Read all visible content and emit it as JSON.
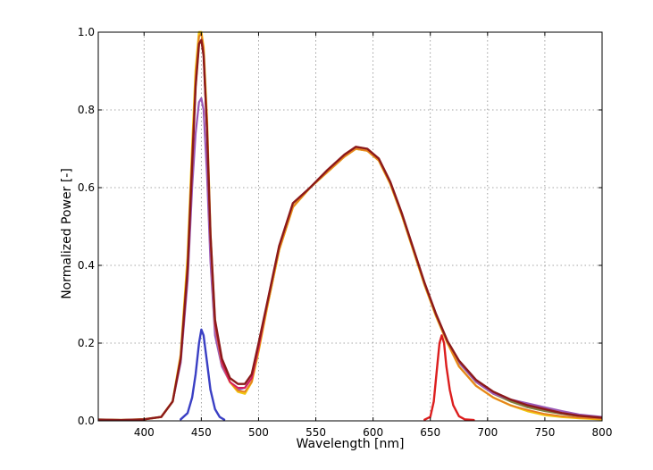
{
  "chart_data": {
    "type": "line",
    "xlabel": "Wavelength [nm]",
    "ylabel": "Normalized Power [-]",
    "xlim": [
      360,
      800
    ],
    "ylim": [
      0,
      1.0
    ],
    "grid": true,
    "x_ticks": [
      400,
      450,
      500,
      550,
      600,
      650,
      700,
      750,
      800
    ],
    "x_tick_labels": [
      "400",
      "450",
      "500",
      "550",
      "600",
      "650",
      "700",
      "750",
      "800"
    ],
    "y_ticks": [
      0.0,
      0.2,
      0.4,
      0.6,
      0.8,
      1.0
    ],
    "y_tick_labels": [
      "0.0",
      "0.2",
      "0.4",
      "0.6",
      "0.8",
      "1.0"
    ],
    "series": [
      {
        "color": "#808040",
        "width": 2.2,
        "x": [
          360,
          380,
          400,
          415,
          425,
          432,
          438,
          442,
          445,
          448,
          450,
          452,
          455,
          458,
          462,
          468,
          475,
          482,
          488,
          494,
          500,
          508,
          518,
          530,
          545,
          560,
          575,
          585,
          595,
          605,
          615,
          625,
          635,
          645,
          655,
          665,
          675,
          690,
          705,
          720,
          735,
          750,
          765,
          780,
          800
        ],
        "y": [
          0.004,
          0.002,
          0.004,
          0.01,
          0.05,
          0.16,
          0.4,
          0.68,
          0.88,
          0.99,
          1.0,
          0.95,
          0.74,
          0.46,
          0.24,
          0.15,
          0.1,
          0.08,
          0.085,
          0.11,
          0.19,
          0.3,
          0.44,
          0.55,
          0.6,
          0.64,
          0.68,
          0.7,
          0.695,
          0.67,
          0.61,
          0.53,
          0.44,
          0.35,
          0.27,
          0.2,
          0.15,
          0.1,
          0.07,
          0.05,
          0.035,
          0.025,
          0.018,
          0.012,
          0.008
        ]
      },
      {
        "color": "#9b59b6",
        "width": 2.2,
        "x": [
          360,
          380,
          400,
          415,
          425,
          432,
          438,
          442,
          445,
          448,
          450,
          452,
          455,
          458,
          462,
          468,
          475,
          482,
          488,
          494,
          500,
          508,
          518,
          530,
          545,
          560,
          575,
          585,
          595,
          605,
          615,
          625,
          635,
          645,
          655,
          665,
          675,
          690,
          705,
          720,
          735,
          750,
          765,
          780,
          800
        ],
        "y": [
          0.003,
          0.002,
          0.004,
          0.01,
          0.05,
          0.15,
          0.36,
          0.6,
          0.74,
          0.82,
          0.83,
          0.8,
          0.63,
          0.41,
          0.22,
          0.14,
          0.1,
          0.08,
          0.085,
          0.11,
          0.19,
          0.3,
          0.44,
          0.55,
          0.6,
          0.64,
          0.68,
          0.7,
          0.695,
          0.67,
          0.61,
          0.53,
          0.44,
          0.35,
          0.27,
          0.2,
          0.15,
          0.1,
          0.07,
          0.055,
          0.045,
          0.035,
          0.025,
          0.016,
          0.01
        ]
      },
      {
        "color": "#f1c40f",
        "width": 2.5,
        "x": [
          360,
          380,
          400,
          415,
          425,
          432,
          438,
          442,
          445,
          448,
          450,
          452,
          455,
          458,
          462,
          468,
          475,
          482,
          488,
          494,
          500,
          508,
          518,
          530,
          545,
          560,
          575,
          585,
          595,
          605,
          615,
          625,
          635,
          645,
          655,
          665,
          675,
          690,
          705,
          720,
          735,
          750,
          765,
          780,
          800
        ],
        "y": [
          0.003,
          0.002,
          0.004,
          0.01,
          0.05,
          0.17,
          0.42,
          0.7,
          0.9,
          1.0,
          1.0,
          0.96,
          0.77,
          0.48,
          0.25,
          0.15,
          0.1,
          0.075,
          0.07,
          0.1,
          0.18,
          0.3,
          0.44,
          0.55,
          0.6,
          0.64,
          0.68,
          0.7,
          0.695,
          0.67,
          0.61,
          0.53,
          0.44,
          0.35,
          0.27,
          0.2,
          0.14,
          0.09,
          0.06,
          0.04,
          0.025,
          0.015,
          0.01,
          0.007,
          0.004
        ]
      },
      {
        "color": "#e67e22",
        "width": 1.8,
        "x": [
          360,
          380,
          400,
          415,
          425,
          432,
          438,
          442,
          445,
          448,
          450,
          452,
          455,
          458,
          462,
          468,
          475,
          482,
          488,
          494,
          500,
          508,
          518,
          530,
          545,
          560,
          575,
          585,
          595,
          605,
          615,
          625,
          635,
          645,
          655,
          665,
          675,
          690,
          705,
          720,
          735,
          750,
          765,
          780,
          800
        ],
        "y": [
          0.003,
          0.002,
          0.004,
          0.01,
          0.05,
          0.17,
          0.41,
          0.69,
          0.89,
          0.99,
          0.995,
          0.96,
          0.76,
          0.47,
          0.25,
          0.15,
          0.1,
          0.078,
          0.075,
          0.1,
          0.18,
          0.3,
          0.44,
          0.55,
          0.6,
          0.64,
          0.68,
          0.7,
          0.695,
          0.67,
          0.61,
          0.53,
          0.44,
          0.35,
          0.27,
          0.2,
          0.14,
          0.09,
          0.06,
          0.04,
          0.028,
          0.018,
          0.012,
          0.008,
          0.005
        ]
      },
      {
        "color": "#d81b60",
        "width": 2.0,
        "x": [
          360,
          380,
          400,
          415,
          425,
          432,
          438,
          442,
          445,
          448,
          450,
          452,
          455,
          458,
          462,
          468,
          475,
          482,
          488,
          494,
          500,
          508,
          518,
          530,
          545,
          560,
          575,
          585,
          595,
          605,
          615,
          625,
          635,
          645,
          655,
          665,
          675,
          690,
          705,
          720,
          735,
          750,
          765,
          780,
          800
        ],
        "y": [
          0.003,
          0.002,
          0.004,
          0.01,
          0.05,
          0.16,
          0.39,
          0.66,
          0.86,
          0.97,
          0.98,
          0.94,
          0.74,
          0.47,
          0.25,
          0.15,
          0.1,
          0.085,
          0.085,
          0.11,
          0.19,
          0.31,
          0.45,
          0.56,
          0.6,
          0.645,
          0.685,
          0.705,
          0.7,
          0.675,
          0.615,
          0.535,
          0.445,
          0.355,
          0.275,
          0.205,
          0.155,
          0.105,
          0.075,
          0.055,
          0.04,
          0.03,
          0.02,
          0.013,
          0.008
        ]
      },
      {
        "color": "#8b1a1a",
        "width": 2.4,
        "x": [
          360,
          380,
          400,
          415,
          425,
          432,
          438,
          442,
          445,
          448,
          450,
          452,
          455,
          458,
          462,
          468,
          475,
          482,
          488,
          494,
          500,
          508,
          518,
          530,
          545,
          560,
          575,
          585,
          595,
          605,
          615,
          625,
          635,
          645,
          655,
          665,
          675,
          690,
          705,
          720,
          735,
          750,
          765,
          780,
          800
        ],
        "y": [
          0.003,
          0.002,
          0.004,
          0.01,
          0.05,
          0.16,
          0.39,
          0.66,
          0.86,
          0.97,
          0.98,
          0.94,
          0.75,
          0.48,
          0.26,
          0.16,
          0.11,
          0.095,
          0.095,
          0.12,
          0.2,
          0.31,
          0.45,
          0.56,
          0.6,
          0.645,
          0.685,
          0.705,
          0.7,
          0.675,
          0.615,
          0.535,
          0.445,
          0.355,
          0.275,
          0.205,
          0.155,
          0.105,
          0.075,
          0.055,
          0.04,
          0.03,
          0.02,
          0.013,
          0.008
        ]
      },
      {
        "color": "#3a3fc4",
        "width": 2.4,
        "x": [
          432,
          438,
          442,
          445,
          448,
          450,
          452,
          455,
          458,
          462,
          466,
          470
        ],
        "y": [
          0.004,
          0.02,
          0.06,
          0.12,
          0.2,
          0.235,
          0.22,
          0.15,
          0.08,
          0.03,
          0.01,
          0.003
        ]
      },
      {
        "color": "#dc1e1e",
        "width": 2.4,
        "x": [
          645,
          650,
          653,
          656,
          658,
          660,
          662,
          664,
          667,
          670,
          675,
          680,
          688
        ],
        "y": [
          0.003,
          0.01,
          0.05,
          0.14,
          0.2,
          0.22,
          0.2,
          0.14,
          0.08,
          0.04,
          0.012,
          0.004,
          0.002
        ]
      }
    ]
  }
}
